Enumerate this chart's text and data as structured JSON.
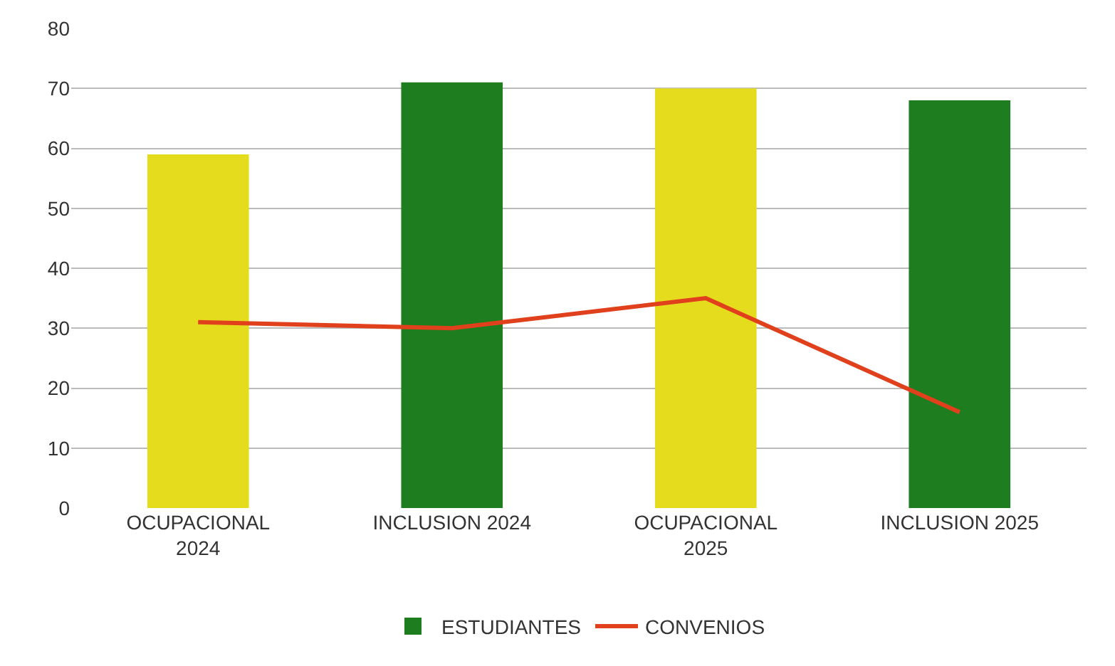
{
  "chart_data": {
    "type": "bar",
    "categories": [
      "OCUPACIONAL\n2024",
      "INCLUSION 2024",
      "OCUPACIONAL\n2025",
      "INCLUSION 2025"
    ],
    "series": [
      {
        "name": "ESTUDIANTES",
        "colors": [
          "#e6dc1e",
          "#1e7d1e",
          "#e6dc1e",
          "#1e7d1e"
        ],
        "color": "#1e7d1e",
        "values": [
          59,
          71,
          70,
          68
        ]
      },
      {
        "name": "CONVENIOS",
        "type": "line",
        "color": "#e0401c",
        "values": [
          31,
          30,
          35,
          16
        ]
      }
    ],
    "ylim": [
      0,
      80
    ],
    "yticks": [
      0,
      10,
      20,
      30,
      40,
      50,
      60,
      70,
      80
    ],
    "grid": "y",
    "legend": "bottom",
    "marker": "none"
  }
}
